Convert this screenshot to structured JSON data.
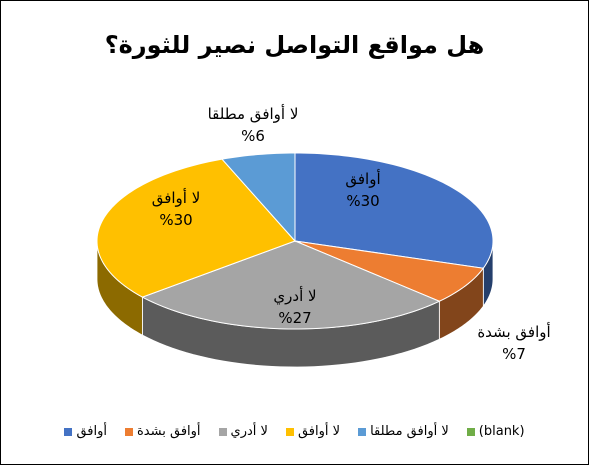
{
  "chart_data": {
    "type": "pie",
    "title": "هل مواقع التواصل نصير للثورة؟",
    "categories": [
      "أوافق",
      "أوافق بشدة",
      "لا أدري",
      "لا أوافق",
      "لا أوافق مطلقا",
      "(blank)"
    ],
    "values": [
      30,
      7,
      27,
      30,
      6,
      0
    ],
    "value_labels": [
      "%30",
      "%7",
      "%27",
      "%30",
      "%6",
      ""
    ],
    "colors": [
      "#4472C4",
      "#ED7D31",
      "#A5A5A5",
      "#FFC000",
      "#5B9BD5",
      "#70AD47"
    ],
    "legend_position": "bottom",
    "three_d": true
  }
}
